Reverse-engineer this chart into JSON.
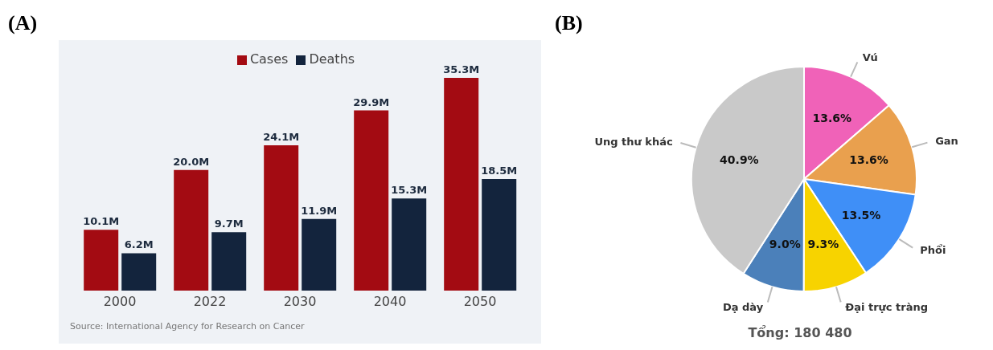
{
  "chart_data": [
    {
      "type": "bar",
      "title": "(A)",
      "categories": [
        "2000",
        "2022",
        "2030",
        "2040",
        "2050"
      ],
      "series": [
        {
          "name": "Cases",
          "color": "#a30b12",
          "values": [
            10.1,
            20.0,
            24.1,
            29.9,
            35.3
          ],
          "value_labels": [
            "10.1M",
            "20.0M",
            "24.1M",
            "29.9M",
            "35.3M"
          ]
        },
        {
          "name": "Deaths",
          "color": "#13243d",
          "values": [
            6.2,
            9.7,
            11.9,
            15.3,
            18.5
          ],
          "value_labels": [
            "6.2M",
            "9.7M",
            "11.9M",
            "15.3M",
            "18.5M"
          ]
        }
      ],
      "legend": "top",
      "tick_labels": "x",
      "annotations": [
        "Source: International Agency for Research on Cancer"
      ]
    },
    {
      "type": "pie",
      "title": "(B)",
      "categories": [
        "Vú",
        "Gan",
        "Phổi",
        "Đại trực tràng",
        "Dạ dày",
        "Ung thư khác"
      ],
      "values": [
        13.6,
        13.6,
        13.5,
        9.3,
        9.0,
        40.9
      ],
      "colors": [
        "#f062b8",
        "#e9a04e",
        "#3f8ff7",
        "#f7d300",
        "#4b80ba",
        "#c9c9c9"
      ],
      "value_labels": [
        "13.6%",
        "13.6%",
        "13.5%",
        "9.3%",
        "9.0%",
        "40.9%"
      ],
      "annotations": [
        "Tổng: 180 480"
      ]
    }
  ]
}
